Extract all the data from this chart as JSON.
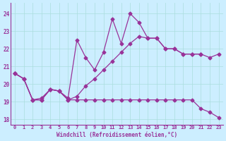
{
  "line_upper_x": [
    0,
    1,
    2,
    3,
    4,
    5,
    6,
    7,
    8,
    9,
    10,
    11,
    12,
    13,
    14,
    15,
    16,
    17,
    18,
    19,
    20,
    21
  ],
  "line_upper_y": [
    20.6,
    20.3,
    19.1,
    19.2,
    19.7,
    19.6,
    19.2,
    22.5,
    21.5,
    20.8,
    21.8,
    23.7,
    22.3,
    24.0,
    23.5,
    22.6,
    22.6,
    22.0,
    22.0,
    21.7,
    21.7,
    21.7
  ],
  "line_lower_x": [
    0,
    1,
    2,
    3,
    4,
    5,
    6,
    7,
    8,
    9,
    10,
    11,
    12,
    13,
    14,
    15,
    16,
    17,
    18,
    19,
    20,
    21,
    22,
    23
  ],
  "line_lower_y": [
    20.6,
    20.3,
    19.1,
    19.1,
    19.7,
    19.6,
    19.1,
    19.1,
    19.1,
    19.1,
    19.1,
    19.1,
    19.1,
    19.1,
    19.1,
    19.1,
    19.1,
    19.1,
    19.1,
    19.1,
    19.1,
    18.6,
    18.4,
    18.1
  ],
  "line_mid_x": [
    0,
    1,
    2,
    3,
    4,
    5,
    6,
    7,
    8,
    9,
    10,
    11,
    12,
    13,
    14,
    15,
    16,
    17,
    18,
    19,
    20,
    21,
    22,
    23
  ],
  "line_mid_y": [
    20.6,
    20.3,
    19.1,
    19.1,
    19.7,
    19.6,
    19.1,
    19.3,
    19.9,
    20.3,
    20.8,
    21.3,
    21.8,
    22.3,
    22.7,
    22.6,
    22.6,
    22.0,
    22.0,
    21.7,
    21.7,
    21.7,
    21.5,
    21.7
  ],
  "ylim": [
    17.7,
    24.6
  ],
  "xlim": [
    -0.5,
    23.5
  ],
  "yticks": [
    18,
    19,
    20,
    21,
    22,
    23,
    24
  ],
  "xticks": [
    0,
    1,
    2,
    3,
    4,
    5,
    6,
    7,
    8,
    9,
    10,
    11,
    12,
    13,
    14,
    15,
    16,
    17,
    18,
    19,
    20,
    21,
    22,
    23
  ],
  "xlabel": "Windchill (Refroidissement éolien,°C)",
  "line_color": "#993399",
  "bg_color": "#cceeff",
  "grid_color": "#aadddd",
  "marker": "D",
  "markersize": 2.5,
  "linewidth": 0.9
}
